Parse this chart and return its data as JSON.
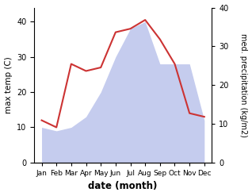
{
  "months": [
    "Jan",
    "Feb",
    "Mar",
    "Apr",
    "May",
    "Jun",
    "Jul",
    "Aug",
    "Sep",
    "Oct",
    "Nov",
    "Dec"
  ],
  "temperature": [
    12,
    10,
    28,
    26,
    27,
    37,
    38,
    40.5,
    35,
    28,
    14,
    13
  ],
  "precipitation": [
    10,
    9,
    10,
    13,
    20,
    30,
    38,
    40,
    28,
    28,
    28,
    12
  ],
  "temp_color": "#cc3333",
  "precip_color_fill": "#c5ccee",
  "title": "",
  "xlabel": "date (month)",
  "ylabel_left": "max temp (C)",
  "ylabel_right": "med. precipitation (kg/m2)",
  "ylim_left": [
    0,
    44
  ],
  "ylim_right": [
    0,
    40
  ],
  "yticks_left": [
    0,
    10,
    20,
    30,
    40
  ],
  "yticks_right": [
    0,
    10,
    20,
    30,
    40
  ],
  "background_color": "#ffffff"
}
